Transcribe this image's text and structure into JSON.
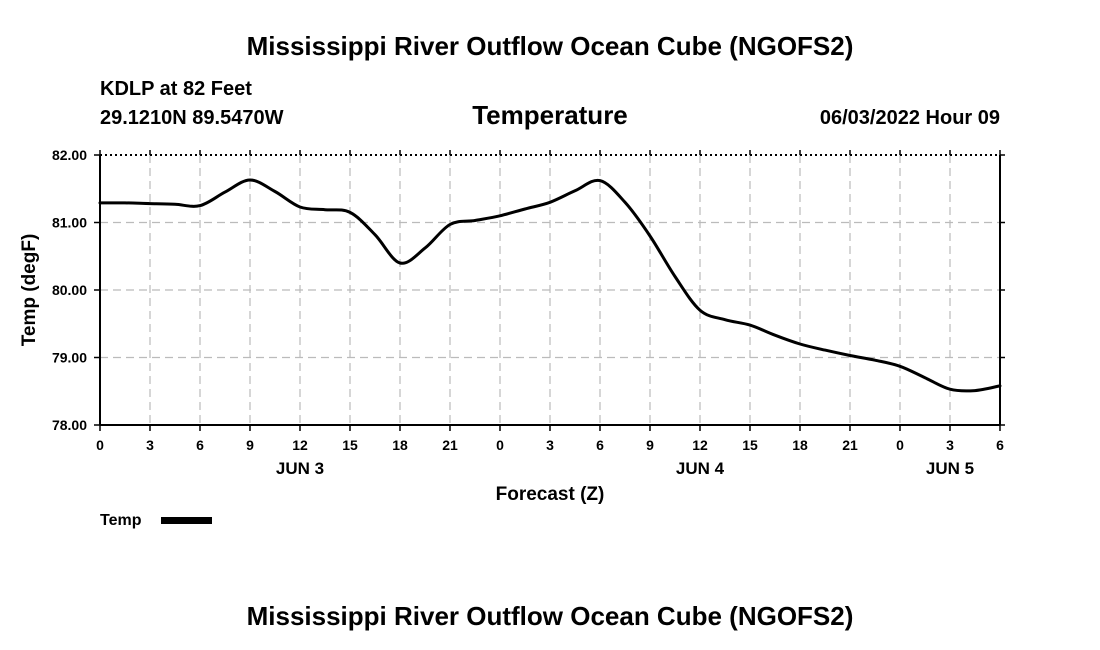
{
  "header": {
    "title": "Mississippi River Outflow Ocean Cube (NGOFS2)",
    "station": "KDLP at 82 Feet",
    "location": "29.1210N  89.5470W",
    "datetime": "06/03/2022 Hour 09"
  },
  "footer": {
    "title": "Mississippi River Outflow Ocean Cube (NGOFS2)"
  },
  "legend": {
    "label": "Temp"
  },
  "colors": {
    "line": "#000000",
    "grid": "#bbbbbb",
    "axis": "#000000"
  },
  "chart_data": {
    "type": "line",
    "title": "Temperature",
    "xlabel": "Forecast (Z)",
    "ylabel": "Temp (degF)",
    "xlim": [
      0,
      54
    ],
    "ylim": [
      78.0,
      82.0
    ],
    "grid": true,
    "legend_position": "bottom-left",
    "x_tick_values": [
      0,
      3,
      6,
      9,
      12,
      15,
      18,
      21,
      24,
      27,
      30,
      33,
      36,
      39,
      42,
      45,
      48,
      51,
      54
    ],
    "x_tick_labels": [
      "0",
      "3",
      "6",
      "9",
      "12",
      "15",
      "18",
      "21",
      "0",
      "3",
      "6",
      "9",
      "12",
      "15",
      "18",
      "21",
      "0",
      "3",
      "6"
    ],
    "y_tick_values": [
      78.0,
      79.0,
      80.0,
      81.0,
      82.0
    ],
    "y_tick_labels": [
      "78.00",
      "79.00",
      "80.00",
      "81.00",
      "82.00"
    ],
    "day_labels": [
      {
        "x": 12,
        "label": "JUN 3"
      },
      {
        "x": 36,
        "label": "JUN 4"
      },
      {
        "x": 51,
        "label": "JUN 5"
      }
    ],
    "series": [
      {
        "name": "Temp",
        "x": [
          0,
          1.5,
          3,
          4.5,
          6,
          7.5,
          9,
          10.5,
          12,
          13.5,
          15,
          16.5,
          18,
          19.5,
          21,
          22.5,
          24,
          25.5,
          27,
          28.5,
          30,
          31.5,
          33,
          34.5,
          36,
          37.5,
          39,
          40.5,
          42,
          43.5,
          45,
          46.5,
          48,
          49.5,
          51,
          52.5,
          54
        ],
        "values": [
          81.29,
          81.29,
          81.28,
          81.27,
          81.25,
          81.45,
          81.63,
          81.46,
          81.23,
          81.19,
          81.15,
          80.82,
          80.4,
          80.62,
          80.97,
          81.03,
          81.1,
          81.2,
          81.3,
          81.47,
          81.62,
          81.3,
          80.8,
          80.2,
          79.7,
          79.56,
          79.48,
          79.33,
          79.2,
          79.11,
          79.03,
          78.96,
          78.87,
          78.7,
          78.53,
          78.51,
          78.58
        ]
      }
    ]
  }
}
